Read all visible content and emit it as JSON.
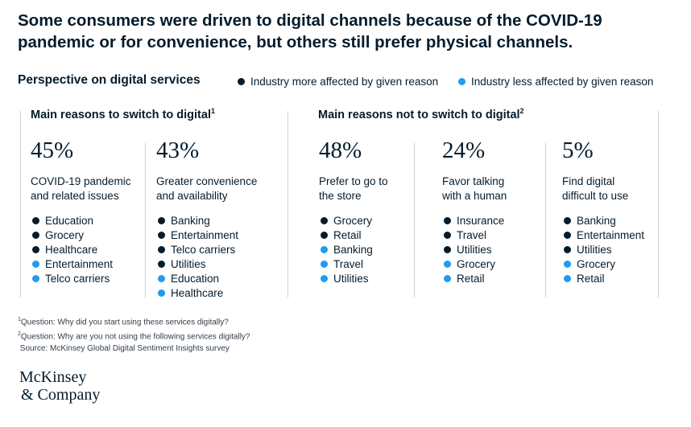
{
  "title_line1": "Some consumers were driven to digital channels because of the COVID-19",
  "title_line2": "pandemic or for convenience, but others still prefer physical channels.",
  "perspective_label": "Perspective on digital services",
  "legend": {
    "more": "Industry more affected by given reason",
    "less": "Industry less affected by given reason"
  },
  "colors": {
    "more": "#051c2c",
    "less": "#1f9cf0"
  },
  "chart_data": {
    "type": "table",
    "sections": [
      {
        "title": "Main reasons to switch to digital",
        "footnote_ref": "1",
        "reasons": [
          {
            "percent": "45%",
            "value": 45,
            "line1": "COVID-19 pandemic",
            "line2": "and related issues",
            "industries": [
              {
                "name": "Education",
                "affect": "more"
              },
              {
                "name": "Grocery",
                "affect": "more"
              },
              {
                "name": "Healthcare",
                "affect": "more"
              },
              {
                "name": "Entertainment",
                "affect": "less"
              },
              {
                "name": "Telco carriers",
                "affect": "less"
              }
            ]
          },
          {
            "percent": "43%",
            "value": 43,
            "line1": "Greater convenience",
            "line2": "and availability",
            "industries": [
              {
                "name": "Banking",
                "affect": "more"
              },
              {
                "name": "Entertainment",
                "affect": "more"
              },
              {
                "name": "Telco carriers",
                "affect": "more"
              },
              {
                "name": "Utilities",
                "affect": "more"
              },
              {
                "name": "Education",
                "affect": "less"
              },
              {
                "name": "Healthcare",
                "affect": "less"
              }
            ]
          }
        ]
      },
      {
        "title": "Main reasons not to switch to digital",
        "footnote_ref": "2",
        "reasons": [
          {
            "percent": "48%",
            "value": 48,
            "line1": "Prefer to go to",
            "line2": "the store",
            "industries": [
              {
                "name": "Grocery",
                "affect": "more"
              },
              {
                "name": "Retail",
                "affect": "more"
              },
              {
                "name": "Banking",
                "affect": "less"
              },
              {
                "name": "Travel",
                "affect": "less"
              },
              {
                "name": "Utilities",
                "affect": "less"
              }
            ]
          },
          {
            "percent": "24%",
            "value": 24,
            "line1": "Favor talking",
            "line2": "with a human",
            "industries": [
              {
                "name": "Insurance",
                "affect": "more"
              },
              {
                "name": "Travel",
                "affect": "more"
              },
              {
                "name": "Utilities",
                "affect": "more"
              },
              {
                "name": "Grocery",
                "affect": "less"
              },
              {
                "name": "Retail",
                "affect": "less"
              }
            ]
          },
          {
            "percent": "5%",
            "value": 5,
            "line1": "Find digital",
            "line2": "difficult to use",
            "industries": [
              {
                "name": "Banking",
                "affect": "more"
              },
              {
                "name": "Entertainment",
                "affect": "more"
              },
              {
                "name": "Utilities",
                "affect": "more"
              },
              {
                "name": "Grocery",
                "affect": "less"
              },
              {
                "name": "Retail",
                "affect": "less"
              }
            ]
          }
        ]
      }
    ]
  },
  "footnotes": {
    "note1_marker": "1",
    "note1": "Question: Why did you start using these services digitally?",
    "note2_marker": "2",
    "note2": "Question: Why are you not using the following services digitally?",
    "source": "Source: McKinsey Global Digital Sentiment Insights survey"
  },
  "logo": {
    "line1": "McKinsey",
    "line2": "& Company"
  }
}
